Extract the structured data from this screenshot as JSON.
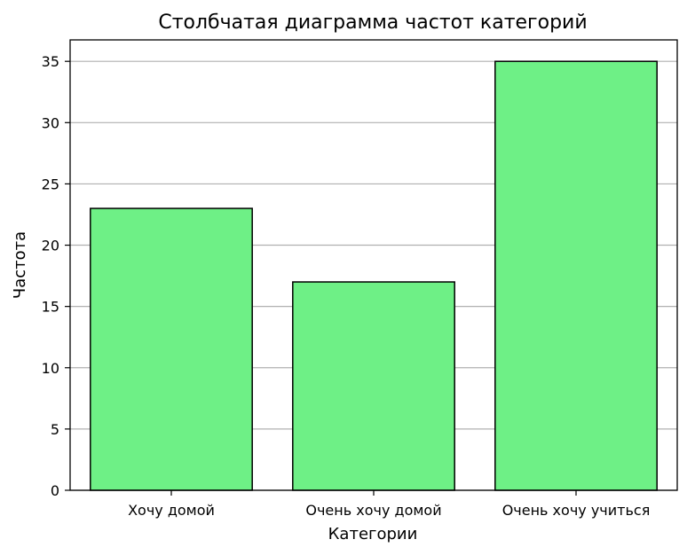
{
  "chart_data": {
    "type": "bar",
    "title": "Столбчатая диаграмма частот категорий",
    "xlabel": "Категории",
    "ylabel": "Частота",
    "categories": [
      "Хочу домой",
      "Очень хочу домой",
      "Очень хочу учиться"
    ],
    "values": [
      23,
      17,
      35
    ],
    "ylim": [
      0,
      36.75
    ],
    "yticks": [
      0,
      5,
      10,
      15,
      20,
      25,
      30,
      35
    ],
    "grid": "horizontal",
    "colors": {
      "bar_fill": "#6ef086",
      "bar_edge": "#000000",
      "grid": "#b0b0b0",
      "axes": "#000000"
    }
  }
}
